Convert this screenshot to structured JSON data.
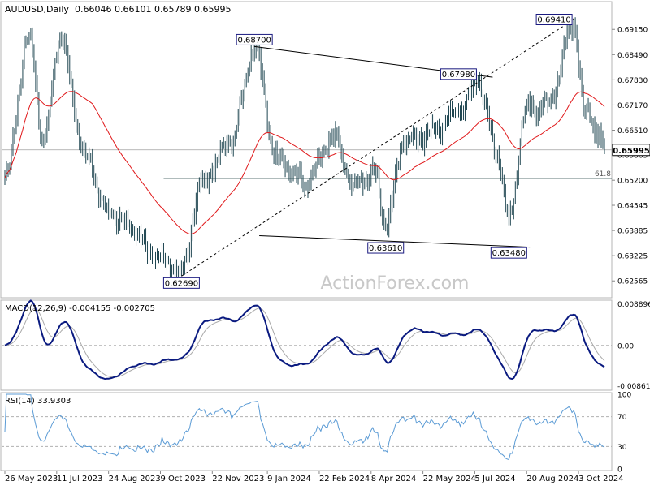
{
  "header": {
    "symbol": "AUDUSD,Daily",
    "ohlc": "0.66046 0.66101 0.65789 0.65995"
  },
  "watermark": "ActionForex.com",
  "colors": {
    "candle": "#1e4550",
    "ema55": "#e0191b",
    "macd": "#0a1a80",
    "signal": "#aaaaaa",
    "rsi": "#5b9bd5",
    "frame": "#b4b4b4",
    "label_box": "#1a1a80"
  },
  "chart_data": [
    {
      "type": "candlestick",
      "panel": "price",
      "y_range": [
        0.6223,
        0.6975
      ],
      "y_ticks": [
        "0.69150",
        "0.68490",
        "0.67830",
        "0.67170",
        "0.66510",
        "0.65865",
        "0.65200",
        "0.64545",
        "0.63885",
        "0.63225",
        "0.62565"
      ],
      "current_price_label": "0.65995",
      "x_labels": [
        "26 May 2023",
        "11 Jul 2023",
        "24 Aug 2023",
        "9 Oct 2023",
        "22 Nov 2023",
        "9 Jan 2024",
        "22 Feb 2024",
        "8 Apr 2024",
        "22 May 2024",
        "5 Jul 2024",
        "20 Aug 2024",
        "3 Oct 2024"
      ],
      "anchors": [
        {
          "date": "2023-05-26",
          "close": 0.6525
        },
        {
          "date": "2023-06-16",
          "close": 0.6895
        },
        {
          "date": "2023-06-29",
          "close": 0.662
        },
        {
          "date": "2023-07-13",
          "close": 0.6894
        },
        {
          "date": "2023-08-04",
          "close": 0.658
        },
        {
          "date": "2023-08-24",
          "close": 0.6435
        },
        {
          "date": "2023-09-12",
          "close": 0.64
        },
        {
          "date": "2023-09-29",
          "close": 0.633
        },
        {
          "date": "2023-10-26",
          "close": 0.628
        },
        {
          "date": "2023-11-14",
          "close": 0.652
        },
        {
          "date": "2023-12-07",
          "close": 0.662
        },
        {
          "date": "2023-12-28",
          "close": 0.686
        },
        {
          "date": "2024-01-17",
          "close": 0.658
        },
        {
          "date": "2024-02-09",
          "close": 0.651
        },
        {
          "date": "2024-03-06",
          "close": 0.663
        },
        {
          "date": "2024-03-22",
          "close": 0.651
        },
        {
          "date": "2024-04-10",
          "close": 0.654
        },
        {
          "date": "2024-04-19",
          "close": 0.64
        },
        {
          "date": "2024-05-06",
          "close": 0.662
        },
        {
          "date": "2024-05-31",
          "close": 0.665
        },
        {
          "date": "2024-06-21",
          "close": 0.67
        },
        {
          "date": "2024-07-09",
          "close": 0.678
        },
        {
          "date": "2024-07-25",
          "close": 0.659
        },
        {
          "date": "2024-08-05",
          "close": 0.642
        },
        {
          "date": "2024-08-20",
          "close": 0.671
        },
        {
          "date": "2024-09-06",
          "close": 0.672
        },
        {
          "date": "2024-09-30",
          "close": 0.693
        },
        {
          "date": "2024-10-09",
          "close": 0.67
        },
        {
          "date": "2024-10-18",
          "close": 0.665
        },
        {
          "date": "2024-10-25",
          "close": 0.66
        }
      ],
      "overlays": [
        {
          "name": "ema",
          "period": 55,
          "color": "#e0191b"
        }
      ],
      "level_labels": [
        {
          "text": "0.62690",
          "date": "2023-10-26",
          "price": 0.6269,
          "placement": "below"
        },
        {
          "text": "0.68700",
          "date": "2023-12-28",
          "price": 0.687,
          "placement": "above"
        },
        {
          "text": "0.67980",
          "date": "2024-07-09",
          "price": 0.6798,
          "placement": "left"
        },
        {
          "text": "0.63610",
          "date": "2024-04-19",
          "price": 0.6361,
          "placement": "below"
        },
        {
          "text": "0.63480",
          "date": "2024-08-05",
          "price": 0.6348,
          "placement": "below"
        },
        {
          "text": "0.69410",
          "date": "2024-09-30",
          "price": 0.6941,
          "placement": "left"
        }
      ],
      "trendlines": [
        {
          "from": {
            "date": "2023-10-26",
            "price": 0.6269
          },
          "to": {
            "date": "2024-09-30",
            "price": 0.6941
          },
          "style": "dashed"
        },
        {
          "from": {
            "date": "2023-12-28",
            "price": 0.687
          },
          "to": {
            "date": "2024-07-22",
            "price": 0.679
          },
          "style": "solid"
        },
        {
          "from": {
            "date": "2024-01-02",
            "price": 0.6375
          },
          "to": {
            "date": "2024-08-22",
            "price": 0.6345
          },
          "style": "solid"
        }
      ],
      "horizontal_lines": [
        {
          "price": 0.6525,
          "label": "61.8",
          "from_date": "2023-10-11"
        },
        {
          "price": 0.65995,
          "style": "thin"
        }
      ]
    },
    {
      "type": "line",
      "panel": "macd",
      "label": "MACD(12,26,9) -0.004155 -0.002705",
      "y_range": [
        -0.0092,
        0.0093
      ],
      "y_ticks": [
        "0.008896",
        "0.00",
        "-0.008612"
      ],
      "series": [
        {
          "name": "MACD",
          "color": "#0a1a80"
        },
        {
          "name": "Signal",
          "color": "#aaaaaa"
        }
      ]
    },
    {
      "type": "line",
      "panel": "rsi",
      "label": "RSI(14) 33.9303",
      "y_range": [
        0,
        100
      ],
      "y_ticks": [
        "100",
        "70",
        "30",
        "0"
      ],
      "levels": [
        70,
        30
      ],
      "series": [
        {
          "name": "RSI",
          "color": "#5b9bd5"
        }
      ]
    }
  ]
}
